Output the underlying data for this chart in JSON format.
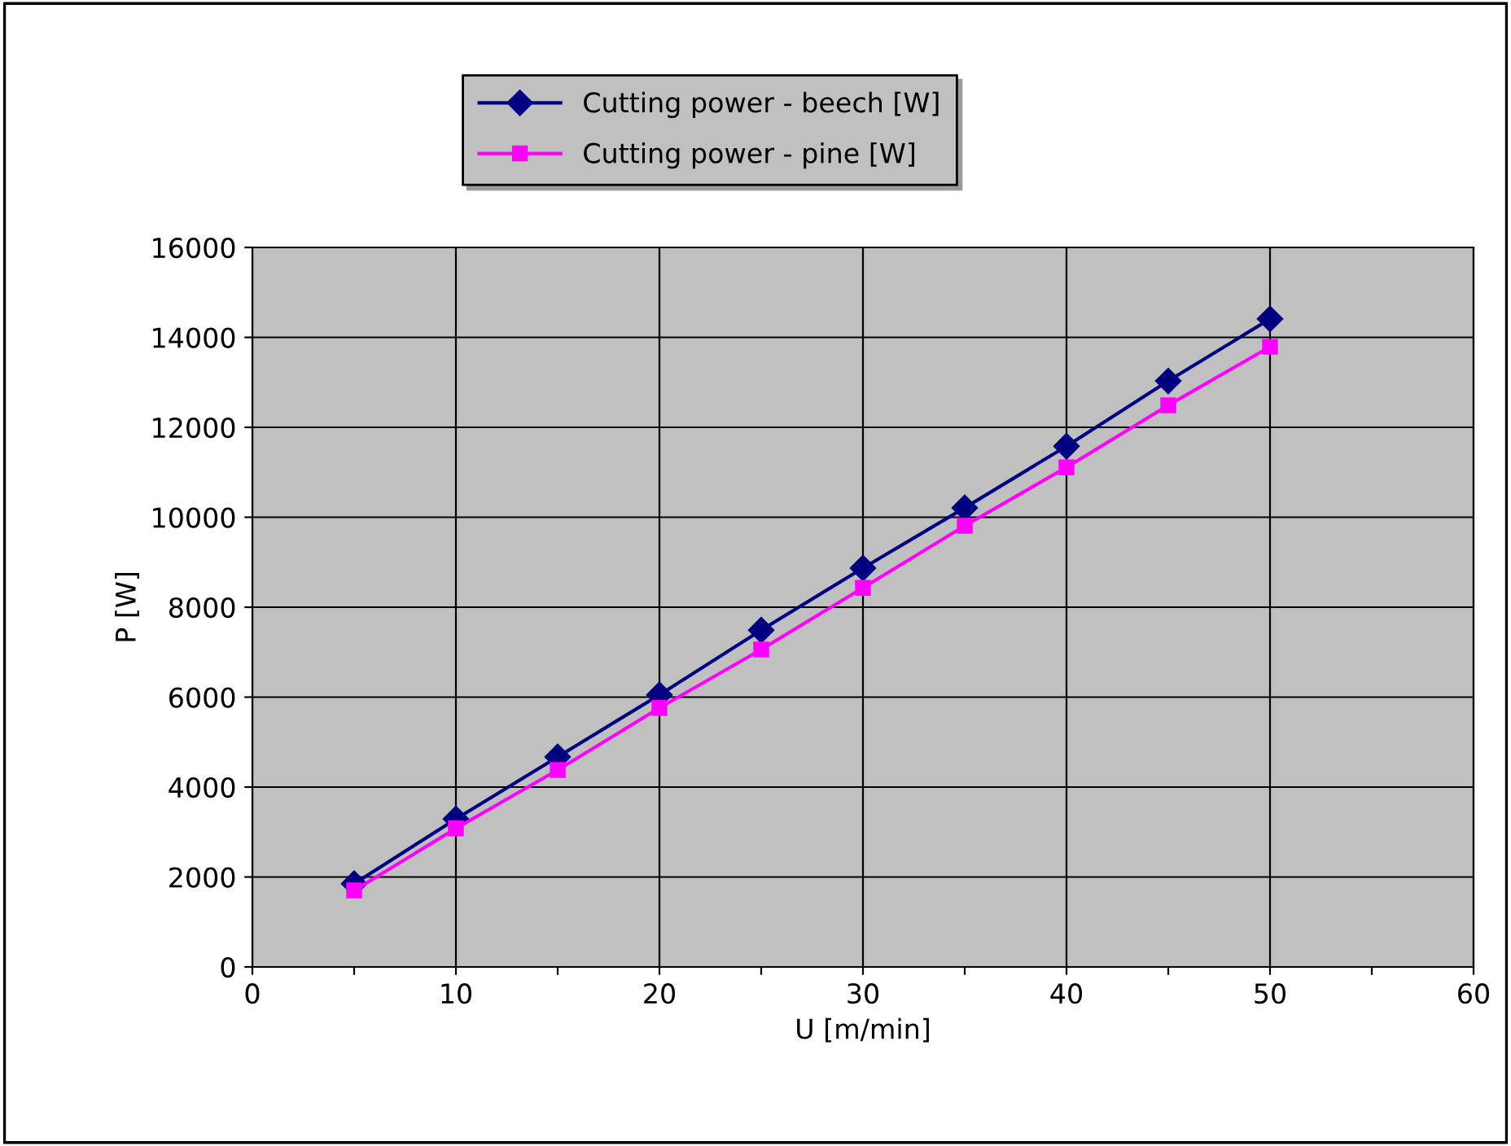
{
  "chart_data": {
    "type": "line",
    "xlabel": "U [m/min]",
    "ylabel": "P [W]",
    "x": [
      5,
      10,
      15,
      20,
      25,
      30,
      35,
      40,
      45,
      50
    ],
    "series": [
      {
        "name": "Cutting power - beech [W]",
        "color": "#000080",
        "marker": "diamond",
        "values": [
          1850,
          3290,
          4670,
          6050,
          7490,
          8870,
          10210,
          11580,
          13030,
          14410
        ]
      },
      {
        "name": "Cutting power - pine [W]",
        "color": "#ff00ff",
        "marker": "square",
        "values": [
          1700,
          3080,
          4380,
          5760,
          7060,
          8430,
          9810,
          11110,
          12490,
          13790
        ]
      }
    ],
    "xlim": [
      0,
      60
    ],
    "xticks": [
      0,
      {
        "value": 5,
        "label": null
      },
      10,
      {
        "value": 15,
        "label": null
      },
      20,
      {
        "value": 25,
        "label": null
      },
      30,
      {
        "value": 35,
        "label": null
      },
      40,
      {
        "value": 45,
        "label": null
      },
      50,
      {
        "value": 55,
        "label": null
      },
      60
    ],
    "ylim": [
      0,
      16000
    ],
    "yticks": [
      0,
      2000,
      4000,
      6000,
      8000,
      10000,
      12000,
      14000,
      16000
    ],
    "grid": true,
    "legend": "top",
    "line_style": "solid"
  }
}
